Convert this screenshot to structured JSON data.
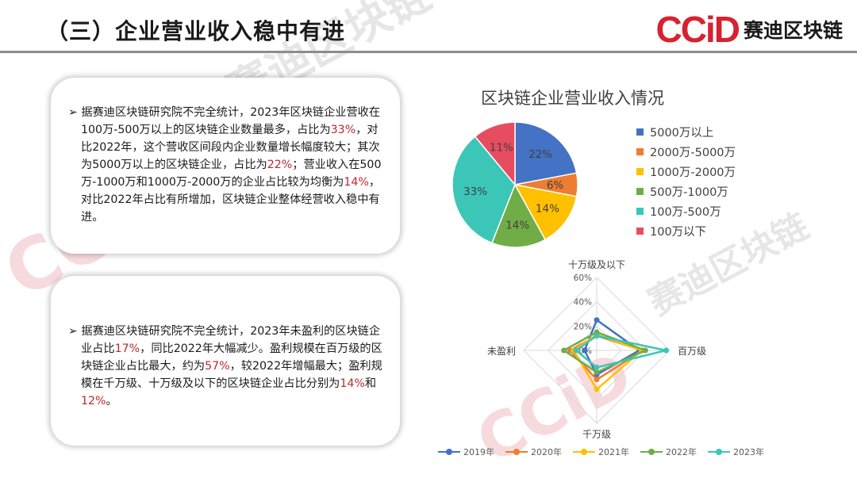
{
  "header": {
    "title": "（三）企业营业收入稳中有进",
    "logo_mark": "CCiD",
    "logo_text": "赛迪区块链"
  },
  "watermark": "赛迪区块链",
  "watermark_mark": "CCiD",
  "card1": {
    "bullet": "➢",
    "segments": [
      {
        "text": "据赛迪区块链研究院不完全统计，2023年区块链企业营收在100万-500万以上的区块链企业数量最多，占比为",
        "hl": false
      },
      {
        "text": "33%",
        "hl": true
      },
      {
        "text": "，对比2022年，这个营收区间段内企业数量增长幅度较大；其次为5000万以上的区块链企业，占比为",
        "hl": false
      },
      {
        "text": "22%",
        "hl": true
      },
      {
        "text": "；营业收入在500万-1000万和1000万-2000万的企业占比较为均衡为",
        "hl": false
      },
      {
        "text": "14%",
        "hl": true
      },
      {
        "text": "，对比2022年占比有所增加，区块链企业整体经营收入稳中有进。",
        "hl": false
      }
    ]
  },
  "card2": {
    "bullet": "➢",
    "segments": [
      {
        "text": "据赛迪区块链研究院不完全统计，2023年未盈利的区块链企业占比",
        "hl": false
      },
      {
        "text": "17%",
        "hl": true
      },
      {
        "text": "，同比2022年大幅减少。盈利规模在百万级的区块链企业占比最大，约为",
        "hl": false
      },
      {
        "text": "57%",
        "hl": true
      },
      {
        "text": "，较2022年增幅最大；盈利规模在千万级、十万级及以下的区块链企业占比分别为",
        "hl": false
      },
      {
        "text": "14%",
        "hl": true
      },
      {
        "text": "和",
        "hl": false
      },
      {
        "text": "12%",
        "hl": true
      },
      {
        "text": "。",
        "hl": false
      }
    ]
  },
  "chart_data": [
    {
      "type": "pie",
      "title": "区块链企业营业收入情况",
      "categories": [
        "5000万以上",
        "2000万-5000万",
        "1000万-2000万",
        "500万-1000万",
        "100万-500万",
        "100万以下"
      ],
      "values": [
        22,
        6,
        14,
        14,
        33,
        11
      ],
      "labels": [
        "22%",
        "6%",
        "14%",
        "14%",
        "33%",
        "11%"
      ],
      "colors": [
        "#4472c4",
        "#ed7d31",
        "#ffc000",
        "#70ad47",
        "#3cc6b8",
        "#e84c61"
      ],
      "legend": "right"
    },
    {
      "type": "radar",
      "axes": [
        "十万级及以下",
        "百万级",
        "千万级",
        "未盈利"
      ],
      "ticks": [
        "0%",
        "20%",
        "40%",
        "60%"
      ],
      "rmax": 60,
      "series": [
        {
          "name": "2019年",
          "color": "#4472c4",
          "values": [
            25,
            35,
            20,
            10
          ]
        },
        {
          "name": "2020年",
          "color": "#ed7d31",
          "values": [
            12,
            38,
            24,
            22
          ]
        },
        {
          "name": "2021年",
          "color": "#ffc000",
          "values": [
            13,
            37,
            32,
            19
          ]
        },
        {
          "name": "2022年",
          "color": "#70ad47",
          "values": [
            15,
            40,
            18,
            27
          ]
        },
        {
          "name": "2023年",
          "color": "#3cc6b8",
          "values": [
            12,
            57,
            14,
            17
          ]
        }
      ],
      "legend": "bottom"
    }
  ]
}
